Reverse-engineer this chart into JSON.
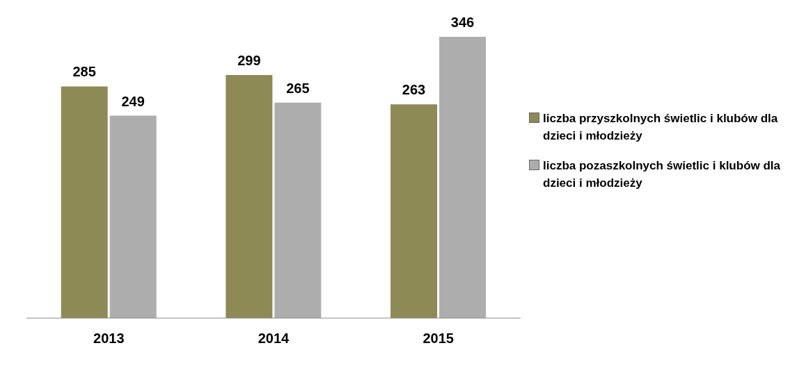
{
  "chart_data": {
    "type": "bar",
    "categories": [
      "2013",
      "2014",
      "2015"
    ],
    "series": [
      {
        "name": "liczba przyszkolnych świetlic i klubów dla dzieci i młodzieży",
        "color": "#8e8a56",
        "values": [
          285,
          299,
          263
        ]
      },
      {
        "name": "liczba pozaszkolnych świetlic i klubów dla dzieci i młodzieży",
        "color": "#adadad",
        "values": [
          249,
          265,
          346
        ]
      }
    ],
    "data_labels": true,
    "legend": "right",
    "grid": false
  }
}
